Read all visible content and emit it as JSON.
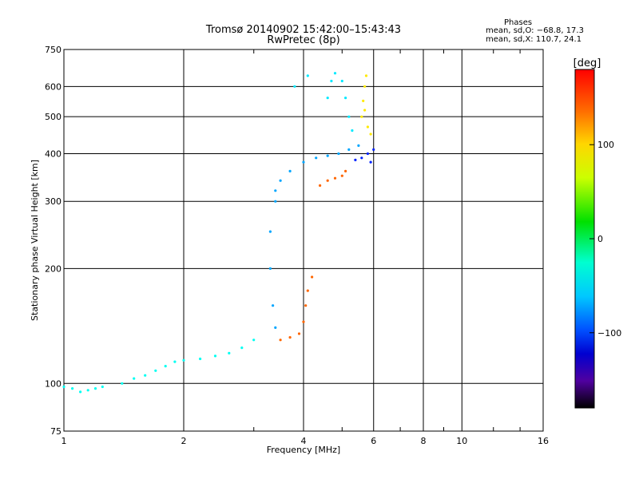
{
  "title_line1": "Tromsø 20140902 15:42:00–15:43:43",
  "title_line2": "RwPretec (8p)",
  "phases": {
    "heading": "Phases",
    "line_o": "mean, sd,O: −68.8, 17.3",
    "line_x": "mean, sd,X: 110.7, 24.1"
  },
  "colorbar": {
    "unit_label": "[deg]",
    "ticks": [
      {
        "value": 100,
        "label": "100"
      },
      {
        "value": 0,
        "label": "0"
      },
      {
        "value": -100,
        "label": "−100"
      }
    ],
    "range": [
      -180,
      180
    ]
  },
  "chart_data": {
    "type": "scatter",
    "title": "Tromsø 20140902 15:42:00–15:43:43",
    "subtitle": "RwPretec (8p)",
    "xlabel": "Frequency [MHz]",
    "ylabel": "Stationary phase Virtual Height [km]",
    "xscale": "log",
    "yscale": "log",
    "xlim": [
      1,
      16
    ],
    "ylim": [
      75,
      750
    ],
    "xticks": [
      {
        "value": 1,
        "label": "1"
      },
      {
        "value": 2,
        "label": "2"
      },
      {
        "value": 4,
        "label": "4"
      },
      {
        "value": 6,
        "label": "6"
      },
      {
        "value": 8,
        "label": "8"
      },
      {
        "value": 10,
        "label": "10"
      },
      {
        "value": 16,
        "label": "16"
      }
    ],
    "yticks": [
      {
        "value": 75,
        "label": "75"
      },
      {
        "value": 100,
        "label": "100"
      },
      {
        "value": 200,
        "label": "200"
      },
      {
        "value": 300,
        "label": "300"
      },
      {
        "value": 400,
        "label": "400"
      },
      {
        "value": 500,
        "label": "500"
      },
      {
        "value": 600,
        "label": "600"
      },
      {
        "value": 750,
        "label": "750"
      }
    ],
    "grid_x": [
      2,
      4,
      6,
      8,
      10
    ],
    "grid_y": [
      100,
      200,
      300,
      400,
      500,
      600
    ],
    "grid": true,
    "color_encoding": "phase (deg)",
    "series": [
      {
        "values": [
          [
            1.0,
            98,
            -45
          ],
          [
            1.05,
            97,
            -45
          ],
          [
            1.1,
            95,
            -45
          ],
          [
            1.15,
            96,
            -45
          ],
          [
            1.2,
            97,
            -45
          ],
          [
            1.25,
            98,
            -45
          ],
          [
            1.4,
            100,
            -45
          ],
          [
            1.5,
            103,
            -45
          ],
          [
            1.6,
            105,
            -45
          ],
          [
            1.7,
            108,
            -45
          ],
          [
            1.8,
            111,
            -45
          ],
          [
            1.9,
            114,
            -45
          ],
          [
            2.0,
            115,
            -45
          ],
          [
            2.2,
            116,
            -45
          ],
          [
            2.4,
            118,
            -45
          ],
          [
            2.6,
            120,
            -45
          ],
          [
            2.8,
            124,
            -45
          ],
          [
            3.0,
            130,
            -45
          ]
        ]
      },
      {
        "values": [
          [
            3.4,
            300,
            -75
          ],
          [
            3.3,
            250,
            -75
          ],
          [
            3.3,
            200,
            -75
          ],
          [
            3.35,
            160,
            -75
          ],
          [
            3.4,
            140,
            -75
          ],
          [
            3.4,
            320,
            -75
          ],
          [
            3.5,
            340,
            -75
          ],
          [
            3.7,
            360,
            -75
          ],
          [
            4.0,
            380,
            -75
          ],
          [
            4.3,
            390,
            -75
          ],
          [
            4.6,
            395,
            -75
          ],
          [
            4.9,
            400,
            -75
          ],
          [
            5.2,
            410,
            -75
          ],
          [
            5.5,
            420,
            -75
          ]
        ]
      },
      {
        "values": [
          [
            3.5,
            130,
            150
          ],
          [
            3.7,
            132,
            150
          ],
          [
            3.9,
            135,
            150
          ],
          [
            4.0,
            145,
            150
          ],
          [
            4.05,
            160,
            150
          ],
          [
            4.1,
            175,
            150
          ],
          [
            4.2,
            190,
            150
          ],
          [
            4.4,
            330,
            150
          ],
          [
            4.6,
            340,
            150
          ],
          [
            4.8,
            345,
            150
          ],
          [
            5.0,
            350,
            150
          ],
          [
            5.1,
            360,
            150
          ]
        ]
      },
      {
        "values": [
          [
            5.6,
            500,
            110
          ],
          [
            5.65,
            550,
            110
          ],
          [
            5.7,
            600,
            110
          ],
          [
            5.75,
            640,
            110
          ],
          [
            5.7,
            520,
            110
          ],
          [
            5.8,
            470,
            110
          ],
          [
            5.9,
            450,
            110
          ]
        ]
      },
      {
        "values": [
          [
            5.4,
            385,
            -115
          ],
          [
            5.6,
            390,
            -115
          ],
          [
            5.8,
            400,
            -115
          ],
          [
            6.0,
            410,
            -115
          ],
          [
            5.9,
            380,
            -115
          ]
        ]
      },
      {
        "values": [
          [
            4.6,
            560,
            -55
          ],
          [
            4.7,
            620,
            -55
          ],
          [
            4.8,
            650,
            -55
          ],
          [
            5.0,
            620,
            -55
          ],
          [
            5.1,
            560,
            -55
          ],
          [
            5.2,
            500,
            -55
          ],
          [
            5.3,
            460,
            -55
          ],
          [
            3.8,
            600,
            -55
          ],
          [
            4.1,
            640,
            -55
          ]
        ]
      }
    ]
  }
}
